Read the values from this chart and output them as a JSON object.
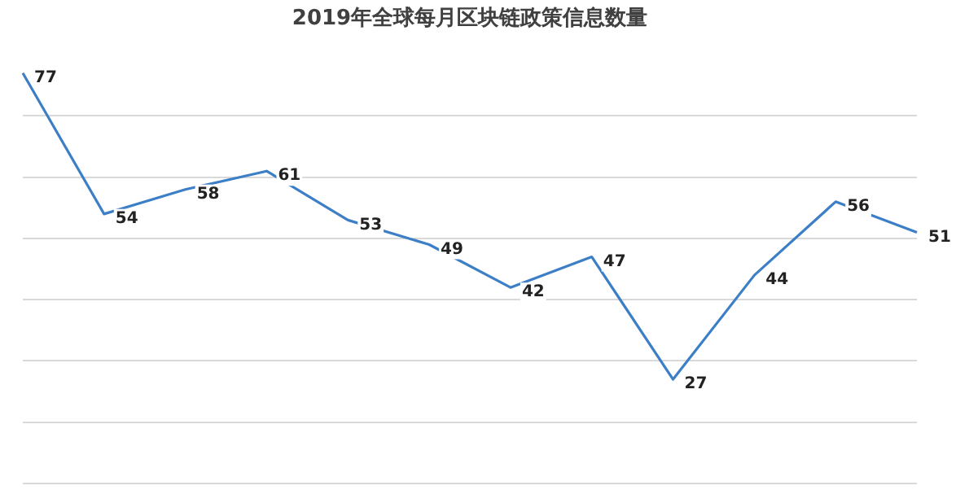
{
  "chart_data": {
    "type": "line",
    "title": "2019年全球每月区块链政策信息数量",
    "categories": [
      null,
      null,
      null,
      null,
      null,
      null,
      null,
      null,
      null,
      null,
      null,
      null
    ],
    "series": [
      {
        "color": "#3d7fc6",
        "values": [
          77,
          54,
          58,
          61,
          53,
          49,
          42,
          47,
          27,
          44,
          56,
          51
        ]
      }
    ],
    "yticks": [
      {
        "value": 10,
        "label": null
      },
      {
        "value": 20,
        "label": null
      },
      {
        "value": 30,
        "label": null
      },
      {
        "value": 40,
        "label": null
      },
      {
        "value": 50,
        "label": null
      },
      {
        "value": 60,
        "label": null
      },
      {
        "value": 70,
        "label": null
      }
    ],
    "grid": "y",
    "legend": false,
    "tick_labels": false,
    "marker": "none",
    "line_style": "solid",
    "data_labels": true
  }
}
